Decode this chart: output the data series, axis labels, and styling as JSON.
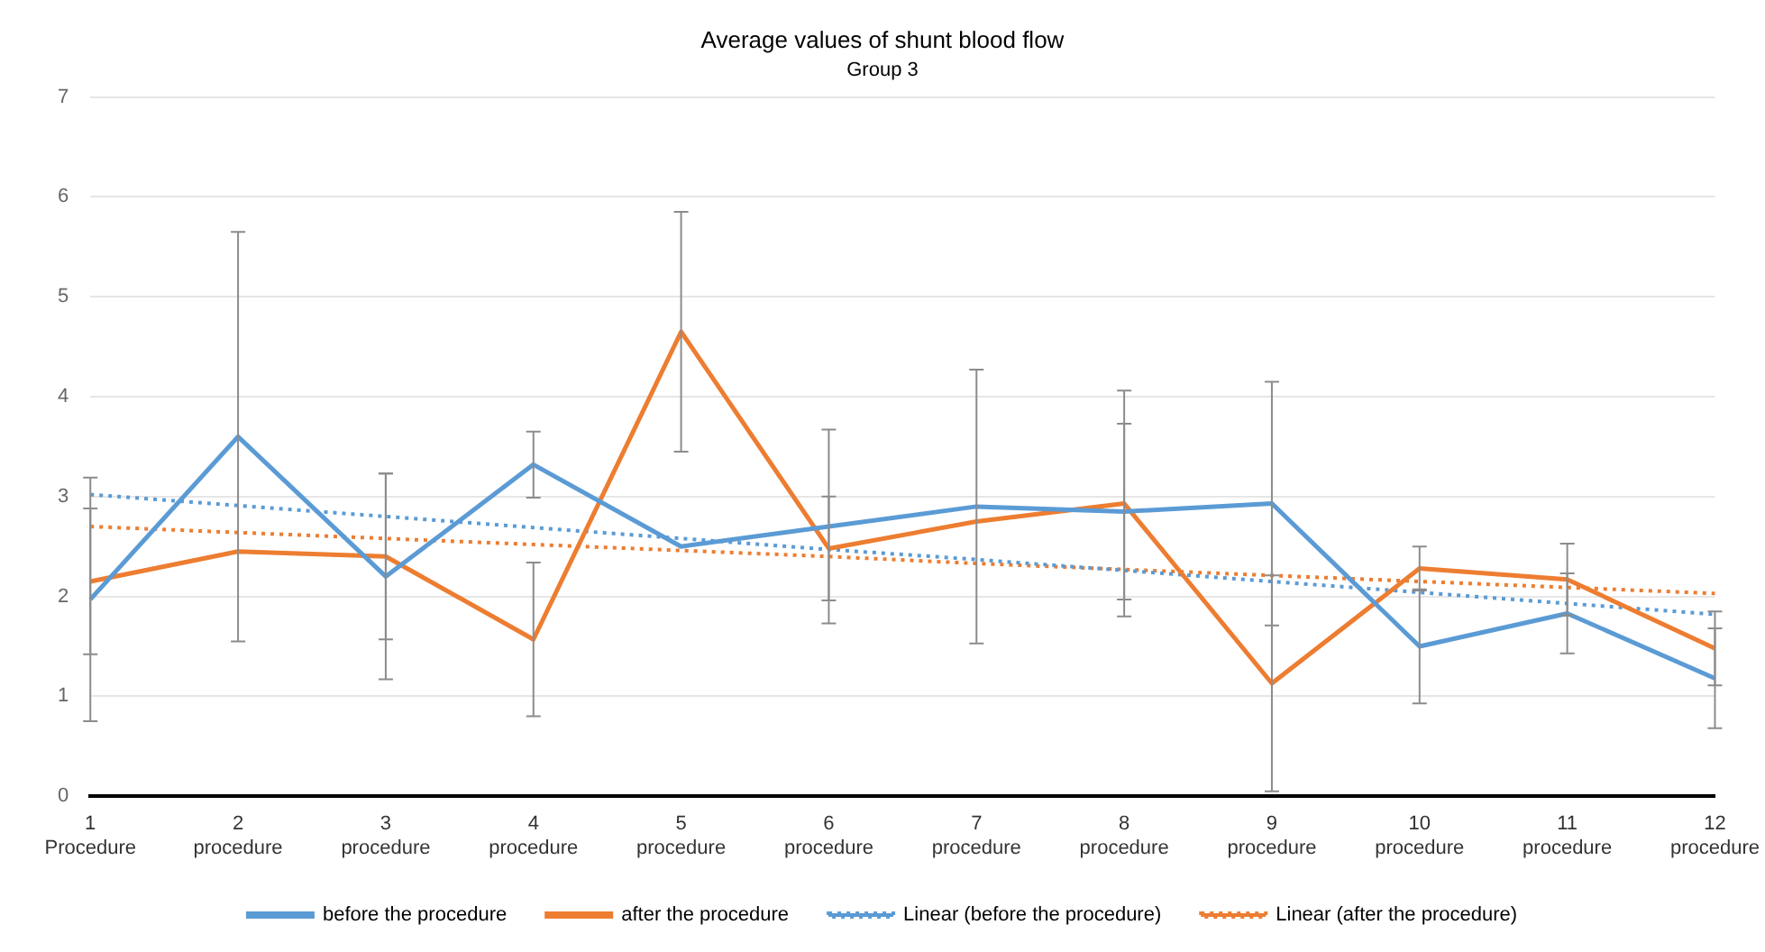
{
  "chart_data": {
    "type": "line",
    "title": "Average values of shunt blood flow",
    "subtitle": "Group 3",
    "categories": [
      "1 Procedure",
      "2 procedure",
      "3 procedure",
      "4 procedure",
      "5 procedure",
      "6 procedure",
      "7 procedure",
      "8 procedure",
      "9 procedure",
      "10 procedure",
      "11 procedure",
      "12 procedure"
    ],
    "series": [
      {
        "name": "before the procedure",
        "color": "#5b9bd5",
        "values": [
          1.97,
          3.6,
          2.2,
          3.32,
          2.5,
          2.7,
          2.9,
          2.85,
          2.93,
          1.5,
          1.83,
          1.18
        ],
        "errors": [
          1.22,
          2.05,
          1.03,
          0.33,
          null,
          0.97,
          1.37,
          0.88,
          1.22,
          0.57,
          0.4,
          0.5
        ]
      },
      {
        "name": "after the procedure",
        "color": "#ed7d31",
        "values": [
          2.15,
          2.45,
          2.4,
          1.57,
          4.65,
          2.48,
          2.75,
          2.93,
          1.13,
          2.28,
          2.17,
          1.48
        ],
        "errors": [
          0.73,
          null,
          0.83,
          0.77,
          1.2,
          0.52,
          null,
          1.13,
          1.08,
          0.22,
          0.36,
          0.37
        ]
      },
      {
        "name": "Linear (before the procedure)",
        "color": "#5b9bd5",
        "line_style": "dotted",
        "values": [
          3.02,
          2.91,
          2.8,
          2.69,
          2.58,
          2.47,
          2.37,
          2.26,
          2.15,
          2.04,
          1.93,
          1.82
        ]
      },
      {
        "name": "Linear (after the procedure)",
        "color": "#ed7d31",
        "line_style": "dotted",
        "values": [
          2.7,
          2.64,
          2.58,
          2.52,
          2.46,
          2.4,
          2.33,
          2.27,
          2.21,
          2.15,
          2.09,
          2.03
        ]
      }
    ],
    "ylim": [
      0,
      7
    ],
    "yticks": [
      0,
      1,
      2,
      3,
      4,
      5,
      6,
      7
    ],
    "grid": "y",
    "legend": "bottom",
    "marker": "none"
  }
}
